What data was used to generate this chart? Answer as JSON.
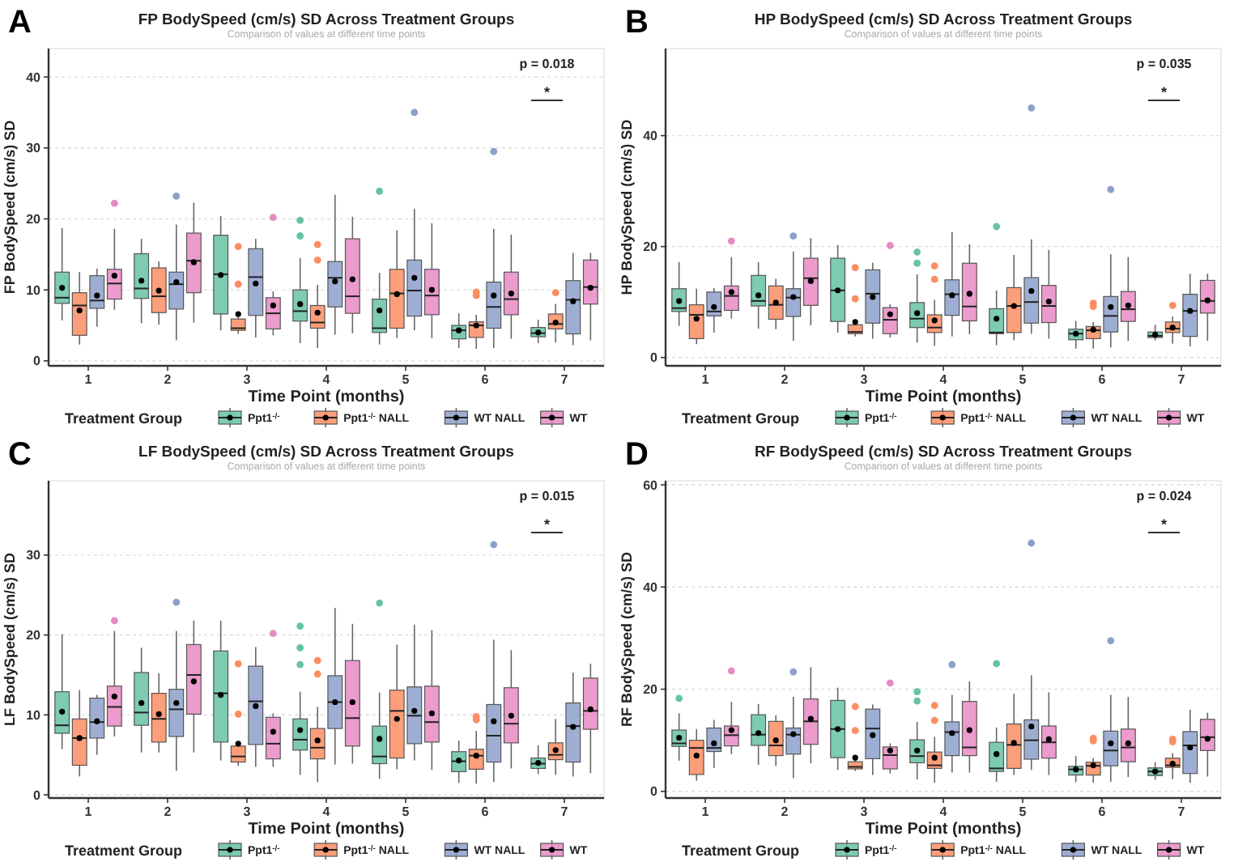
{
  "chart_data": [
    {
      "type": "box",
      "title": "FP BodySpeed (cm/s) SD Across Treatment Groups",
      "subtitle": "Comparison of values at different time points",
      "xlabel": "Time Point (months)",
      "ylabel": "FP BodySpeed (cm/s) SD",
      "legend_title": "Treatment Group",
      "categories": [
        "1",
        "2",
        "3",
        "4",
        "5",
        "6",
        "7"
      ],
      "ylim": [
        -0.7,
        44
      ],
      "yticks": [
        0,
        10,
        20,
        30,
        40
      ],
      "grid": "y",
      "legend": "bottom",
      "annotations": [
        "A",
        "p = 0.018",
        "*"
      ],
      "series": [
        {
          "name": "Ppt1$^{-/-}$",
          "color": "#66c2a5",
          "boxes": [
            {
              "low": 5.7,
              "q1": 8.1,
              "median": 8.9,
              "q3": 12.5,
              "high": 18.7,
              "mean": 10.3
            },
            {
              "low": 5.3,
              "q1": 8.8,
              "median": 10.2,
              "q3": 15.1,
              "high": 17.2,
              "mean": 11.3
            },
            {
              "low": 4.3,
              "q1": 6.6,
              "median": 12.2,
              "q3": 17.7,
              "high": 20.4,
              "mean": 12.1
            },
            {
              "low": 2.5,
              "q1": 5.6,
              "median": 7,
              "q3": 10,
              "high": 14.5,
              "mean": 8,
              "outliers": [
                17.6,
                19.8
              ]
            },
            {
              "low": 2.3,
              "q1": 4,
              "median": 4.6,
              "q3": 8.7,
              "high": 12.4,
              "mean": 7.1,
              "outliers": [
                23.9
              ]
            },
            {
              "low": 1.8,
              "q1": 3.1,
              "median": 4.3,
              "q3": 5,
              "high": 6.7,
              "mean": 4.3
            },
            {
              "low": 2.5,
              "q1": 3.4,
              "median": 3.9,
              "q3": 4.7,
              "high": 5.8,
              "mean": 4
            }
          ]
        },
        {
          "name": "Ppt1$^{-/-}$ NALL",
          "color": "#fc8d62",
          "boxes": [
            {
              "low": 2.3,
              "q1": 3.6,
              "median": 7.8,
              "q3": 9.6,
              "high": 12.5,
              "mean": 7.1
            },
            {
              "low": 5.1,
              "q1": 6.8,
              "median": 9.1,
              "q3": 13.1,
              "high": 14,
              "mean": 9.9
            },
            {
              "low": 3.8,
              "q1": 4.3,
              "median": 4.6,
              "q3": 5.9,
              "high": 6.3,
              "mean": 6.6,
              "outliers": [
                10.8,
                16.1
              ]
            },
            {
              "low": 1.8,
              "q1": 4.6,
              "median": 5.4,
              "q3": 7.8,
              "high": 10.7,
              "mean": 6.8,
              "outliers": [
                14.2,
                16.4
              ]
            },
            {
              "low": 3.2,
              "q1": 4.6,
              "median": 9.5,
              "q3": 12.9,
              "high": 18.4,
              "mean": 9.4
            },
            {
              "low": 1.7,
              "q1": 3.3,
              "median": 5,
              "q3": 5.5,
              "high": 6.5,
              "mean": 5,
              "outliers": [
                9.2,
                9.7
              ]
            },
            {
              "low": 2.6,
              "q1": 4.5,
              "median": 5.2,
              "q3": 6.6,
              "high": 8,
              "mean": 5.4,
              "outliers": [
                9.6
              ]
            }
          ]
        },
        {
          "name": "WT NALL",
          "color": "#8da0cb",
          "boxes": [
            {
              "low": 4.8,
              "q1": 7.4,
              "median": 8.5,
              "q3": 12,
              "high": 13,
              "mean": 9.2
            },
            {
              "low": 2.9,
              "q1": 7.3,
              "median": 10.8,
              "q3": 12.5,
              "high": 19.2,
              "mean": 11.1,
              "outliers": [
                23.2
              ]
            },
            {
              "low": 3.3,
              "q1": 6.4,
              "median": 11.8,
              "q3": 15.8,
              "high": 17.2,
              "mean": 10.9
            },
            {
              "low": 3.7,
              "q1": 7.6,
              "median": 11.7,
              "q3": 14,
              "high": 23.4,
              "mean": 11.2
            },
            {
              "low": 4.3,
              "q1": 6.3,
              "median": 9.9,
              "q3": 14.2,
              "high": 21.4,
              "mean": 11.7,
              "outliers": [
                35
              ]
            },
            {
              "low": 1.8,
              "q1": 4.6,
              "median": 7.6,
              "q3": 11.1,
              "high": 18.6,
              "mean": 9.2,
              "outliers": [
                29.5
              ]
            },
            {
              "low": 2.2,
              "q1": 3.8,
              "median": 8.6,
              "q3": 11.3,
              "high": 15.2,
              "mean": 8.4
            }
          ]
        },
        {
          "name": "WT",
          "color": "#e78ac3",
          "boxes": [
            {
              "low": 7.2,
              "q1": 8.7,
              "median": 10.9,
              "q3": 12.9,
              "high": 18.6,
              "mean": 12,
              "outliers": [
                22.2
              ]
            },
            {
              "low": 5.4,
              "q1": 9.6,
              "median": 14.1,
              "q3": 18,
              "high": 22.3,
              "mean": 13.9
            },
            {
              "low": 3.6,
              "q1": 4.5,
              "median": 6.7,
              "q3": 8.9,
              "high": 9.8,
              "mean": 7.8,
              "outliers": [
                20.2
              ]
            },
            {
              "low": 3.9,
              "q1": 6.7,
              "median": 9.1,
              "q3": 17.2,
              "high": 20.3,
              "mean": 11.5
            },
            {
              "low": 3.2,
              "q1": 6.5,
              "median": 9.2,
              "q3": 12.9,
              "high": 19.4,
              "mean": 10
            },
            {
              "low": 3.1,
              "q1": 6.5,
              "median": 8.7,
              "q3": 12.5,
              "high": 17.8,
              "mean": 9.5
            },
            {
              "low": 2.9,
              "q1": 8,
              "median": 10.4,
              "q3": 14.2,
              "high": 15.2,
              "mean": 10.3
            }
          ]
        }
      ]
    },
    {
      "type": "box",
      "title": "HP BodySpeed (cm/s) SD Across Treatment Groups",
      "subtitle": "Comparison of values at different time points",
      "xlabel": "Time Point (months)",
      "ylabel": "HP BodySpeed (cm/s) SD",
      "legend_title": "Treatment Group",
      "categories": [
        "1",
        "2",
        "3",
        "4",
        "5",
        "6",
        "7"
      ],
      "ylim": [
        -1.5,
        55.7
      ],
      "yticks": [
        0,
        20,
        40
      ],
      "grid": "y",
      "legend": "bottom",
      "annotations": [
        "B",
        "p = 0.035",
        "*"
      ],
      "series": [
        {
          "name": "Ppt1$^{-/-}$",
          "color": "#66c2a5",
          "boxes": [
            {
              "low": 5.7,
              "q1": 8.3,
              "median": 8.9,
              "q3": 12.4,
              "high": 17.2,
              "mean": 10.2
            },
            {
              "low": 5.2,
              "q1": 9.3,
              "median": 10.2,
              "q3": 14.8,
              "high": 17.2,
              "mean": 11.2
            },
            {
              "low": 4.5,
              "q1": 6.5,
              "median": 12.1,
              "q3": 17.9,
              "high": 20.3,
              "mean": 12.1
            },
            {
              "low": 2.7,
              "q1": 5.4,
              "median": 7,
              "q3": 9.9,
              "high": 15,
              "mean": 8,
              "outliers": [
                17,
                19
              ]
            },
            {
              "low": 2.2,
              "q1": 4.3,
              "median": 4.5,
              "q3": 8.8,
              "high": 12.1,
              "mean": 7,
              "outliers": [
                23.6
              ]
            },
            {
              "low": 1.6,
              "q1": 3.2,
              "median": 4.3,
              "q3": 5.1,
              "high": 6.6,
              "mean": 4.3
            },
            {
              "low": 3.1,
              "q1": 3.6,
              "median": 3.9,
              "q3": 4.6,
              "high": 5.9,
              "mean": 4.1
            }
          ]
        },
        {
          "name": "Ppt1$^{-/-}$ NALL",
          "color": "#fc8d62",
          "boxes": [
            {
              "low": 2.4,
              "q1": 3.4,
              "median": 7.7,
              "q3": 9.5,
              "high": 12.4,
              "mean": 7
            },
            {
              "low": 5.1,
              "q1": 6.9,
              "median": 9.5,
              "q3": 12.9,
              "high": 14.2,
              "mean": 9.9
            },
            {
              "low": 3.8,
              "q1": 4.3,
              "median": 4.6,
              "q3": 5.9,
              "high": 6.2,
              "mean": 6.4,
              "outliers": [
                10.6,
                16.2
              ]
            },
            {
              "low": 2.1,
              "q1": 4.5,
              "median": 5.4,
              "q3": 7.7,
              "high": 10.4,
              "mean": 6.7,
              "outliers": [
                14.1,
                16.5
              ]
            },
            {
              "low": 3.1,
              "q1": 4.5,
              "median": 9.3,
              "q3": 12.6,
              "high": 18.5,
              "mean": 9.3
            },
            {
              "low": 1.6,
              "q1": 3.4,
              "median": 4.9,
              "q3": 5.6,
              "high": 6.4,
              "mean": 5,
              "outliers": [
                9.2,
                9.8
              ]
            },
            {
              "low": 2.5,
              "q1": 4.5,
              "median": 5.2,
              "q3": 6.4,
              "high": 7.4,
              "mean": 5.4,
              "outliers": [
                9.4
              ]
            }
          ]
        },
        {
          "name": "WT NALL",
          "color": "#8da0cb",
          "boxes": [
            {
              "low": 4.5,
              "q1": 7.5,
              "median": 8.3,
              "q3": 11.8,
              "high": 12.5,
              "mean": 9.1
            },
            {
              "low": 3,
              "q1": 7.4,
              "median": 10.8,
              "q3": 12.4,
              "high": 19.1,
              "mean": 10.9,
              "outliers": [
                21.9
              ]
            },
            {
              "low": 3.4,
              "q1": 6.2,
              "median": 11.5,
              "q3": 15.8,
              "high": 17.1,
              "mean": 10.9
            },
            {
              "low": 3.8,
              "q1": 7.6,
              "median": 11.4,
              "q3": 14,
              "high": 22.6,
              "mean": 11.2
            },
            {
              "low": 4.3,
              "q1": 6.2,
              "median": 10,
              "q3": 14.4,
              "high": 21.3,
              "mean": 12,
              "outliers": [
                45
              ]
            },
            {
              "low": 1.8,
              "q1": 4.6,
              "median": 7.5,
              "q3": 11,
              "high": 18.6,
              "mean": 9.1,
              "outliers": [
                30.3
              ]
            },
            {
              "low": 2,
              "q1": 3.8,
              "median": 8.4,
              "q3": 11.4,
              "high": 15.1,
              "mean": 8.4
            }
          ]
        },
        {
          "name": "WT",
          "color": "#e78ac3",
          "boxes": [
            {
              "low": 7,
              "q1": 8.5,
              "median": 11.1,
              "q3": 12.9,
              "high": 18.1,
              "mean": 11.8,
              "outliers": [
                21
              ]
            },
            {
              "low": 5.8,
              "q1": 9.4,
              "median": 14.3,
              "q3": 17.9,
              "high": 21.5,
              "mean": 13.8
            },
            {
              "low": 3.6,
              "q1": 4.3,
              "median": 6.8,
              "q3": 9,
              "high": 9.6,
              "mean": 7.8,
              "outliers": [
                20.2
              ]
            },
            {
              "low": 4.2,
              "q1": 6.6,
              "median": 9.2,
              "q3": 17,
              "high": 20.4,
              "mean": 11.5
            },
            {
              "low": 3.4,
              "q1": 6.3,
              "median": 9.3,
              "q3": 13,
              "high": 19.4,
              "mean": 10.1
            },
            {
              "low": 3,
              "q1": 6.5,
              "median": 8.7,
              "q3": 11.9,
              "high": 18.1,
              "mean": 9.4
            },
            {
              "low": 3,
              "q1": 8,
              "median": 10.2,
              "q3": 13.9,
              "high": 15.1,
              "mean": 10.3
            }
          ]
        }
      ]
    },
    {
      "type": "box",
      "title": "LF BodySpeed (cm/s) SD Across Treatment Groups",
      "subtitle": "Comparison of values at different time points",
      "xlabel": "Time Point (months)",
      "ylabel": "LF BodySpeed (cm/s) SD",
      "legend_title": "Treatment Group",
      "categories": [
        "1",
        "2",
        "3",
        "4",
        "5",
        "6",
        "7"
      ],
      "ylim": [
        -0.4,
        39.3
      ],
      "yticks": [
        0,
        10,
        20,
        30
      ],
      "grid": "y",
      "legend": "bottom",
      "annotations": [
        "C",
        "p = 0.015",
        "*"
      ],
      "series": [
        {
          "name": "Ppt1$^{-/-}$",
          "color": "#66c2a5",
          "boxes": [
            {
              "low": 5.7,
              "q1": 7.7,
              "median": 8.7,
              "q3": 12.9,
              "high": 20.1,
              "mean": 10.4
            },
            {
              "low": 5.3,
              "q1": 8.7,
              "median": 10.3,
              "q3": 15.3,
              "high": 18.4,
              "mean": 11.5
            },
            {
              "low": 4.3,
              "q1": 6.6,
              "median": 12.7,
              "q3": 18,
              "high": 21.8,
              "mean": 12.5
            },
            {
              "low": 2.5,
              "q1": 5.6,
              "median": 6.9,
              "q3": 9.5,
              "high": 12.9,
              "mean": 8.1,
              "outliers": [
                16.3,
                18.4,
                21.1
              ]
            },
            {
              "low": 2,
              "q1": 3.9,
              "median": 4.8,
              "q3": 8.6,
              "high": 12.8,
              "mean": 7,
              "outliers": [
                24
              ]
            },
            {
              "low": 1.5,
              "q1": 2.9,
              "median": 4.2,
              "q3": 5.4,
              "high": 6.8,
              "mean": 4.3
            },
            {
              "low": 2.6,
              "q1": 3.3,
              "median": 3.9,
              "q3": 4.6,
              "high": 6.2,
              "mean": 4
            }
          ]
        },
        {
          "name": "Ppt1$^{-/-}$ NALL",
          "color": "#fc8d62",
          "boxes": [
            {
              "low": 2.3,
              "q1": 3.7,
              "median": 7.1,
              "q3": 9.5,
              "high": 13.1,
              "mean": 7.1
            },
            {
              "low": 5.3,
              "q1": 6.6,
              "median": 9.5,
              "q3": 12.7,
              "high": 15.2,
              "mean": 10.1
            },
            {
              "low": 3.6,
              "q1": 4.1,
              "median": 4.8,
              "q3": 6.1,
              "high": 6.5,
              "mean": 6.4,
              "outliers": [
                10.1,
                16.4
              ]
            },
            {
              "low": 1.6,
              "q1": 4.5,
              "median": 5.9,
              "q3": 8.3,
              "high": 11,
              "mean": 6.8,
              "outliers": [
                15.1,
                16.8
              ]
            },
            {
              "low": 3.2,
              "q1": 4.6,
              "median": 10.5,
              "q3": 13.1,
              "high": 18.8,
              "mean": 9.5
            },
            {
              "low": 1.4,
              "q1": 3.2,
              "median": 4.9,
              "q3": 5.7,
              "high": 8,
              "mean": 4.9,
              "outliers": [
                9.4,
                9.8
              ]
            },
            {
              "low": 2.5,
              "q1": 4.4,
              "median": 5,
              "q3": 6.5,
              "high": 9.5,
              "mean": 5.6
            }
          ]
        },
        {
          "name": "WT NALL",
          "color": "#8da0cb",
          "boxes": [
            {
              "low": 5,
              "q1": 7.1,
              "median": 9.1,
              "q3": 12.1,
              "high": 12.5,
              "mean": 9.2
            },
            {
              "low": 3,
              "q1": 7.3,
              "median": 10.7,
              "q3": 13.2,
              "high": 20.5,
              "mean": 11.5,
              "outliers": [
                24.1
              ]
            },
            {
              "low": 3.5,
              "q1": 6.3,
              "median": 11.7,
              "q3": 16.1,
              "high": 18.5,
              "mean": 11.1
            },
            {
              "low": 3.8,
              "q1": 8.3,
              "median": 11.6,
              "q3": 14.9,
              "high": 23.4,
              "mean": 11.6
            },
            {
              "low": 4.3,
              "q1": 6.4,
              "median": 9.9,
              "q3": 13.5,
              "high": 21.3,
              "mean": 10.5
            },
            {
              "low": 1.6,
              "q1": 4.1,
              "median": 7.4,
              "q3": 11.3,
              "high": 19.4,
              "mean": 9.2,
              "outliers": [
                31.3
              ]
            },
            {
              "low": 2.3,
              "q1": 4.1,
              "median": 8.6,
              "q3": 11.5,
              "high": 15.3,
              "mean": 8.5
            }
          ]
        },
        {
          "name": "WT",
          "color": "#e78ac3",
          "boxes": [
            {
              "low": 7.3,
              "q1": 8.6,
              "median": 11,
              "q3": 13.6,
              "high": 20.5,
              "mean": 12.3,
              "outliers": [
                21.8
              ]
            },
            {
              "low": 5.3,
              "q1": 10.1,
              "median": 15,
              "q3": 18.8,
              "high": 21.8,
              "mean": 14.2
            },
            {
              "low": 3.5,
              "q1": 4.5,
              "median": 6.4,
              "q3": 9.7,
              "high": 10.2,
              "mean": 7.9,
              "outliers": [
                20.2
              ]
            },
            {
              "low": 3.9,
              "q1": 6.1,
              "median": 9.6,
              "q3": 16.8,
              "high": 21.4,
              "mean": 11.6
            },
            {
              "low": 3.1,
              "q1": 6.6,
              "median": 9.1,
              "q3": 13.6,
              "high": 20.6,
              "mean": 10.2
            },
            {
              "low": 3.3,
              "q1": 6.5,
              "median": 8.9,
              "q3": 13.4,
              "high": 18.1,
              "mean": 9.9
            },
            {
              "low": 2.7,
              "q1": 8.2,
              "median": 10.5,
              "q3": 14.6,
              "high": 16.4,
              "mean": 10.7
            }
          ]
        }
      ]
    },
    {
      "type": "box",
      "title": "RF BodySpeed (cm/s) SD Across Treatment Groups",
      "subtitle": "Comparison of values at different time points",
      "xlabel": "Time Point (months)",
      "ylabel": "RF BodySpeed (cm/s) SD",
      "legend_title": "Treatment Group",
      "categories": [
        "1",
        "2",
        "3",
        "4",
        "5",
        "6",
        "7"
      ],
      "ylim": [
        -1.3,
        60.8
      ],
      "yticks": [
        0,
        20,
        40,
        60
      ],
      "grid": "y",
      "legend": "bottom",
      "annotations": [
        "D",
        "p = 0.024",
        "*"
      ],
      "series": [
        {
          "name": "Ppt1$^{-/-}$",
          "color": "#66c2a5",
          "boxes": [
            {
              "low": 6,
              "q1": 8.8,
              "median": 9.4,
              "q3": 12,
              "high": 15.3,
              "mean": 10.5,
              "outliers": [
                18.2
              ]
            },
            {
              "low": 5.2,
              "q1": 9,
              "median": 11.1,
              "q3": 15,
              "high": 17.1,
              "mean": 11.4
            },
            {
              "low": 4.2,
              "q1": 6.6,
              "median": 12.2,
              "q3": 17.8,
              "high": 20.3,
              "mean": 12.2
            },
            {
              "low": 2.3,
              "q1": 5.6,
              "median": 6.9,
              "q3": 10.1,
              "high": 13.6,
              "mean": 8,
              "outliers": [
                17.7,
                19.5
              ]
            },
            {
              "low": 1.9,
              "q1": 3.9,
              "median": 4.5,
              "q3": 9.6,
              "high": 12.5,
              "mean": 7.3,
              "outliers": [
                25
              ]
            },
            {
              "low": 1.8,
              "q1": 3.2,
              "median": 4.3,
              "q3": 4.9,
              "high": 6.9,
              "mean": 4.3
            },
            {
              "low": 2.3,
              "q1": 3.1,
              "median": 3.9,
              "q3": 4.6,
              "high": 5.7,
              "mean": 3.9
            }
          ]
        },
        {
          "name": "Ppt1$^{-/-}$ NALL",
          "color": "#fc8d62",
          "boxes": [
            {
              "low": 2.1,
              "q1": 3.3,
              "median": 8.5,
              "q3": 10,
              "high": 12.2,
              "mean": 7
            },
            {
              "low": 5,
              "q1": 7,
              "median": 9,
              "q3": 13.7,
              "high": 14.9,
              "mean": 10
            },
            {
              "low": 4,
              "q1": 4.4,
              "median": 4.8,
              "q3": 5.8,
              "high": 6.2,
              "mean": 6.6,
              "outliers": [
                11.9,
                16.6
              ]
            },
            {
              "low": 1.7,
              "q1": 4.5,
              "median": 5.1,
              "q3": 7.7,
              "high": 10.7,
              "mean": 6.6,
              "outliers": [
                13.9,
                16.8
              ]
            },
            {
              "low": 3.2,
              "q1": 4.5,
              "median": 9.1,
              "q3": 13.2,
              "high": 19.1,
              "mean": 9.5
            },
            {
              "low": 1.7,
              "q1": 3.2,
              "median": 5,
              "q3": 5.7,
              "high": 6.5,
              "mean": 5.1,
              "outliers": [
                9.9,
                10.4
              ]
            },
            {
              "low": 2.4,
              "q1": 4.7,
              "median": 5.1,
              "q3": 6.5,
              "high": 7.5,
              "mean": 5.4,
              "outliers": [
                9.7,
                10.2
              ]
            }
          ]
        },
        {
          "name": "WT NALL",
          "color": "#8da0cb",
          "boxes": [
            {
              "low": 4.6,
              "q1": 7.8,
              "median": 8.5,
              "q3": 12.4,
              "high": 14,
              "mean": 9.4
            },
            {
              "low": 2.6,
              "q1": 7.3,
              "median": 11.1,
              "q3": 12.4,
              "high": 18.5,
              "mean": 11.2,
              "outliers": [
                23.4
              ]
            },
            {
              "low": 3.2,
              "q1": 6.4,
              "median": 12.3,
              "q3": 16.1,
              "high": 17,
              "mean": 11
            },
            {
              "low": 3.7,
              "q1": 7,
              "median": 11.6,
              "q3": 13.6,
              "high": 18.9,
              "mean": 11.4,
              "outliers": [
                24.8
              ]
            },
            {
              "low": 4.2,
              "q1": 6.3,
              "median": 10,
              "q3": 14,
              "high": 22.7,
              "mean": 12.7,
              "outliers": [
                48.6
              ]
            },
            {
              "low": 1.9,
              "q1": 5,
              "median": 8,
              "q3": 11.8,
              "high": 18.9,
              "mean": 9.4,
              "outliers": [
                29.5
              ]
            },
            {
              "low": 1.7,
              "q1": 3.5,
              "median": 9,
              "q3": 11.7,
              "high": 16,
              "mean": 8.6
            }
          ]
        },
        {
          "name": "WT",
          "color": "#e78ac3",
          "boxes": [
            {
              "low": 7.3,
              "q1": 8.9,
              "median": 11,
              "q3": 12.8,
              "high": 17.5,
              "mean": 12,
              "outliers": [
                23.6
              ]
            },
            {
              "low": 5.5,
              "q1": 9.2,
              "median": 13.7,
              "q3": 18.1,
              "high": 24.3,
              "mean": 14.2
            },
            {
              "low": 3.5,
              "q1": 4.4,
              "median": 7.1,
              "q3": 8.7,
              "high": 9.4,
              "mean": 8,
              "outliers": [
                21.2
              ]
            },
            {
              "low": 3.7,
              "q1": 7,
              "median": 8.6,
              "q3": 17.6,
              "high": 21.5,
              "mean": 12
            },
            {
              "low": 3.2,
              "q1": 6.5,
              "median": 9.6,
              "q3": 12.8,
              "high": 19.4,
              "mean": 10.2
            },
            {
              "low": 2.8,
              "q1": 5.8,
              "median": 8.6,
              "q3": 12.2,
              "high": 18.5,
              "mean": 9.4
            },
            {
              "low": 2.9,
              "q1": 8,
              "median": 10.6,
              "q3": 14.1,
              "high": 15.4,
              "mean": 10.3
            }
          ]
        }
      ]
    }
  ]
}
